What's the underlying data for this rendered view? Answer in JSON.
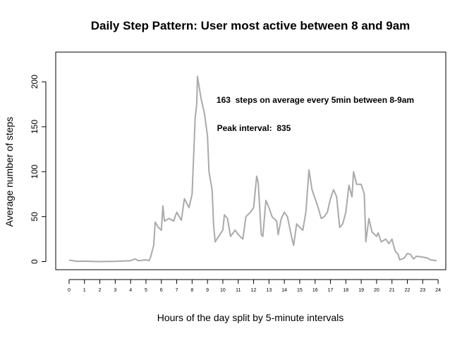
{
  "chart_data": {
    "type": "line",
    "title": "Daily Step Pattern: User most active between 8 and 9am",
    "x_label": "Hours of the day split by 5-minute intervals",
    "y_label": "Average number of steps",
    "annotations": [
      "163  steps on average every 5min between 8-9am",
      "Peak interval:  835"
    ],
    "color": "#aaaaaa",
    "xlim": [
      -0.87,
      24.5
    ],
    "ylim": [
      -9,
      233
    ],
    "xticks": [
      0,
      1,
      2,
      3,
      4,
      5,
      6,
      7,
      8,
      9,
      10,
      11,
      12,
      13,
      14,
      15,
      16,
      17,
      18,
      19,
      20,
      21,
      22,
      23,
      24
    ],
    "yticks": [
      0,
      50,
      100,
      150,
      200
    ],
    "x": [
      0,
      0.5,
      1,
      2,
      3,
      4,
      4.3,
      4.5,
      5,
      5.2,
      5.3,
      5.5,
      5.6,
      5.8,
      6,
      6.1,
      6.2,
      6.5,
      6.8,
      7,
      7.3,
      7.5,
      7.8,
      8,
      8.2,
      8.3,
      8.35,
      8.5,
      8.6,
      8.8,
      9,
      9.1,
      9.3,
      9.4,
      9.5,
      9.8,
      10,
      10.1,
      10.3,
      10.5,
      10.8,
      11,
      11.3,
      11.5,
      11.8,
      12,
      12.2,
      12.3,
      12.5,
      12.6,
      12.8,
      13,
      13.2,
      13.5,
      13.6,
      13.8,
      14,
      14.2,
      14.5,
      14.6,
      14.8,
      15,
      15.2,
      15.4,
      15.6,
      15.8,
      16,
      16.2,
      16.4,
      16.6,
      16.8,
      17,
      17.2,
      17.4,
      17.6,
      17.8,
      18,
      18.2,
      18.4,
      18.5,
      18.7,
      19,
      19.2,
      19.3,
      19.5,
      19.7,
      20,
      20.1,
      20.3,
      20.6,
      20.8,
      21,
      21.2,
      21.4,
      21.5,
      21.8,
      22,
      22.2,
      22.4,
      22.6,
      23,
      23.3,
      23.5,
      23.9
    ],
    "values": [
      1.7,
      0.3,
      0.5,
      0,
      0.3,
      1,
      3,
      1,
      2,
      1,
      5,
      18,
      44,
      38,
      35,
      62,
      45,
      48,
      45,
      55,
      46,
      70,
      60,
      75,
      160,
      175,
      206,
      190,
      180,
      165,
      140,
      100,
      80,
      40,
      22,
      30,
      35,
      52,
      48,
      28,
      35,
      30,
      25,
      50,
      55,
      60,
      95,
      88,
      30,
      28,
      68,
      60,
      50,
      45,
      30,
      48,
      55,
      50,
      25,
      18,
      42,
      38,
      35,
      55,
      102,
      80,
      70,
      60,
      48,
      50,
      55,
      70,
      80,
      72,
      38,
      42,
      55,
      85,
      72,
      100,
      86,
      86,
      75,
      22,
      48,
      33,
      28,
      32,
      22,
      25,
      20,
      25,
      12,
      8,
      2,
      4,
      9,
      8,
      3,
      6,
      5,
      4,
      2,
      1
    ]
  }
}
